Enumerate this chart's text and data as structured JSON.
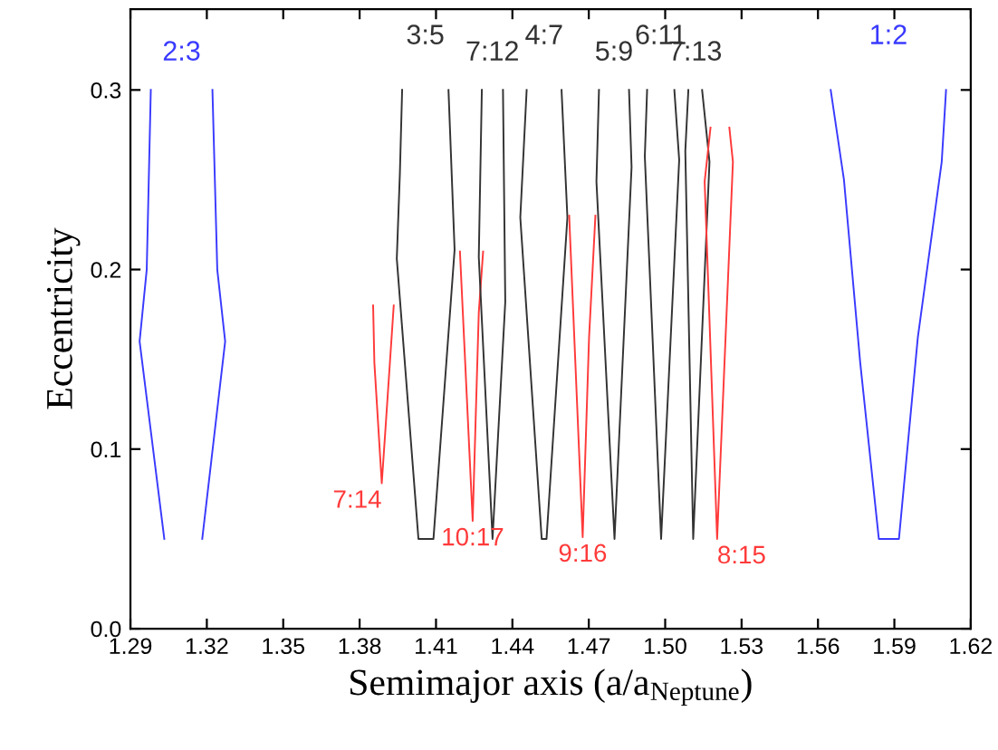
{
  "chart_data": {
    "type": "line",
    "xlabel": "Semimajor axis (a/a$_{Neptune}$)",
    "ylabel": "Eccentricity",
    "xlim": [
      1.29,
      1.62
    ],
    "ylim": [
      0,
      0.345
    ],
    "xticks": [
      1.29,
      1.32,
      1.35,
      1.38,
      1.41,
      1.44,
      1.47,
      {
        "value": 1.5,
        "label": "1.50"
      },
      1.53,
      1.56,
      1.59,
      1.62
    ],
    "yticks": [
      {
        "value": 0,
        "label": "0.0"
      },
      {
        "value": 0.1,
        "label": "0.1"
      },
      {
        "value": 0.2,
        "label": "0.2"
      },
      {
        "value": 0.3,
        "label": "0.3"
      }
    ],
    "grid": false,
    "legend": false,
    "marker": "none",
    "line_style": "solid",
    "series": [
      {
        "name": "2:3",
        "color": "#3a3aff",
        "x": [
          1.298,
          1.2964,
          1.2936,
          1.3033,
          null,
          1.3182,
          1.3272,
          1.3241,
          1.3222
        ],
        "values": [
          0.3,
          0.2,
          0.16,
          0.05,
          null,
          0.05,
          0.16,
          0.2,
          0.3
        ]
      },
      {
        "name": "7:14",
        "color": "#ff3a3a",
        "x": [
          1.3853,
          1.3858,
          1.3887,
          1.39,
          1.3934
        ],
        "values": [
          0.18,
          0.148,
          0.081,
          0.108,
          0.18
        ]
      },
      {
        "name": "3:5",
        "color": "#333333",
        "x": [
          1.3967,
          1.3958,
          1.3946,
          1.4031,
          1.409,
          1.4173,
          1.4149
        ],
        "values": [
          0.3,
          0.253,
          0.206,
          0.05,
          0.05,
          0.211,
          0.3
        ]
      },
      {
        "name": "10:17",
        "color": "#ff3a3a",
        "x": [
          1.4194,
          1.4244,
          1.4268,
          1.4285
        ],
        "values": [
          0.21,
          0.06,
          0.176,
          0.21
        ]
      },
      {
        "name": "7:12",
        "color": "#333333",
        "x": [
          1.428,
          1.4268,
          1.4322,
          1.4372,
          1.4363
        ],
        "values": [
          0.3,
          0.207,
          0.05,
          0.182,
          0.3
        ]
      },
      {
        "name": "4:7",
        "color": "#333333",
        "x": [
          1.4456,
          1.4431,
          1.4515,
          1.4534,
          1.4616,
          1.4593
        ],
        "values": [
          0.3,
          0.229,
          0.05,
          0.05,
          0.229,
          0.3
        ]
      },
      {
        "name": "9:16",
        "color": "#ff3a3a",
        "x": [
          1.4623,
          1.4676,
          1.4701,
          1.4726
        ],
        "values": [
          0.23,
          0.051,
          0.162,
          0.23
        ]
      },
      {
        "name": "5:9",
        "color": "#333333",
        "x": [
          1.474,
          1.473,
          1.4801,
          1.4868,
          1.4858
        ],
        "values": [
          0.3,
          0.249,
          0.05,
          0.257,
          0.3
        ]
      },
      {
        "name": "6:11",
        "color": "#333333",
        "x": [
          1.4929,
          1.492,
          1.4984,
          1.5055,
          1.5036
        ],
        "values": [
          0.3,
          0.263,
          0.05,
          0.261,
          0.3
        ]
      },
      {
        "name": "7:13",
        "color": "#333333",
        "x": [
          1.5091,
          1.5079,
          1.511,
          1.5174,
          1.5145
        ],
        "values": [
          0.3,
          0.266,
          0.05,
          0.26,
          0.3
        ]
      },
      {
        "name": "8:15",
        "color": "#ff3a3a",
        "x": [
          1.5178,
          1.5155,
          1.5204,
          1.5266,
          1.5252
        ],
        "values": [
          0.279,
          0.249,
          0.05,
          0.26,
          0.279
        ]
      },
      {
        "name": "1:2",
        "color": "#3a3aff",
        "x": [
          1.565,
          1.5702,
          1.5766,
          1.5839,
          1.5918,
          1.5992,
          1.6086,
          1.6103
        ],
        "values": [
          0.3,
          0.25,
          0.148,
          0.05,
          0.05,
          0.162,
          0.26,
          0.3
        ]
      }
    ]
  }
}
